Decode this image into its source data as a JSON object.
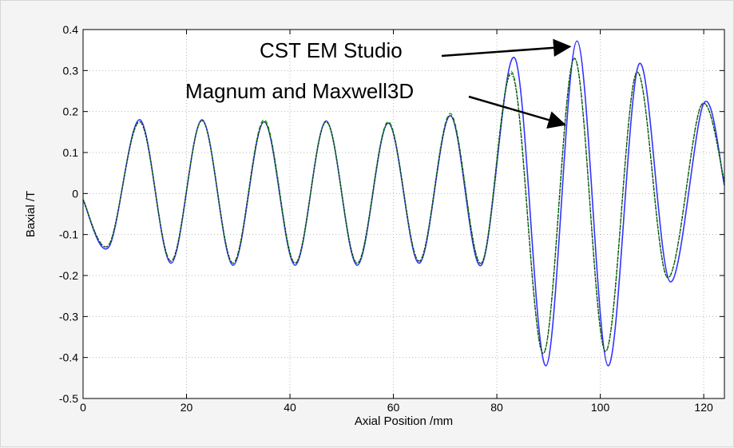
{
  "chart_data": {
    "type": "line",
    "title": "",
    "xlabel": "Axial Position /mm",
    "ylabel": "Baxial /T",
    "xlim": [
      0,
      124
    ],
    "ylim": [
      -0.5,
      0.4
    ],
    "x_ticks": [
      0,
      20,
      40,
      60,
      80,
      100,
      120
    ],
    "y_ticks": [
      -0.5,
      -0.4,
      -0.3,
      -0.2,
      -0.1,
      0,
      0.1,
      0.2,
      0.3,
      0.4
    ],
    "grid": true,
    "series": [
      {
        "color": "#3333ff",
        "x": [
          0,
          5,
          11,
          17,
          23,
          29,
          35,
          41,
          47,
          53,
          59,
          65,
          71,
          77,
          83.5,
          89.5,
          95.5,
          101.5,
          107.5,
          113.5,
          120,
          124
        ],
        "y": [
          -0.015,
          -0.13,
          0.18,
          -0.17,
          0.18,
          -0.175,
          0.175,
          -0.175,
          0.177,
          -0.175,
          0.172,
          -0.17,
          0.19,
          -0.175,
          0.33,
          -0.42,
          0.372,
          -0.42,
          0.316,
          -0.215,
          0.22,
          0.02
        ]
      },
      {
        "color": "#00aa00",
        "x": [
          0,
          5,
          11,
          17,
          23,
          29,
          35,
          41,
          47,
          53,
          59,
          65,
          71,
          77,
          83,
          89,
          95,
          101,
          107,
          113,
          119.5,
          124
        ],
        "y": [
          -0.015,
          -0.125,
          0.175,
          -0.165,
          0.178,
          -0.17,
          0.18,
          -0.17,
          0.175,
          -0.17,
          0.175,
          -0.165,
          0.195,
          -0.17,
          0.295,
          -0.39,
          0.33,
          -0.385,
          0.295,
          -0.205,
          0.215,
          0.03
        ]
      },
      {
        "color": "#222222",
        "x": [
          0,
          5,
          11,
          17,
          23,
          29,
          35,
          41,
          47,
          53,
          59,
          65,
          71,
          77,
          83,
          89,
          95,
          101,
          107,
          113,
          119.5,
          124
        ],
        "y": [
          -0.015,
          -0.125,
          0.175,
          -0.165,
          0.178,
          -0.17,
          0.175,
          -0.17,
          0.175,
          -0.17,
          0.172,
          -0.165,
          0.19,
          -0.17,
          0.29,
          -0.39,
          0.33,
          -0.385,
          0.295,
          -0.205,
          0.215,
          0.03
        ]
      }
    ],
    "annotations": [
      {
        "text": "CST EM Studio",
        "arrow_to": {
          "x": 95,
          "y": 0.37
        }
      },
      {
        "text": "Magnum and Maxwell3D",
        "arrow_to": {
          "x": 94,
          "y": 0.18
        }
      }
    ]
  }
}
